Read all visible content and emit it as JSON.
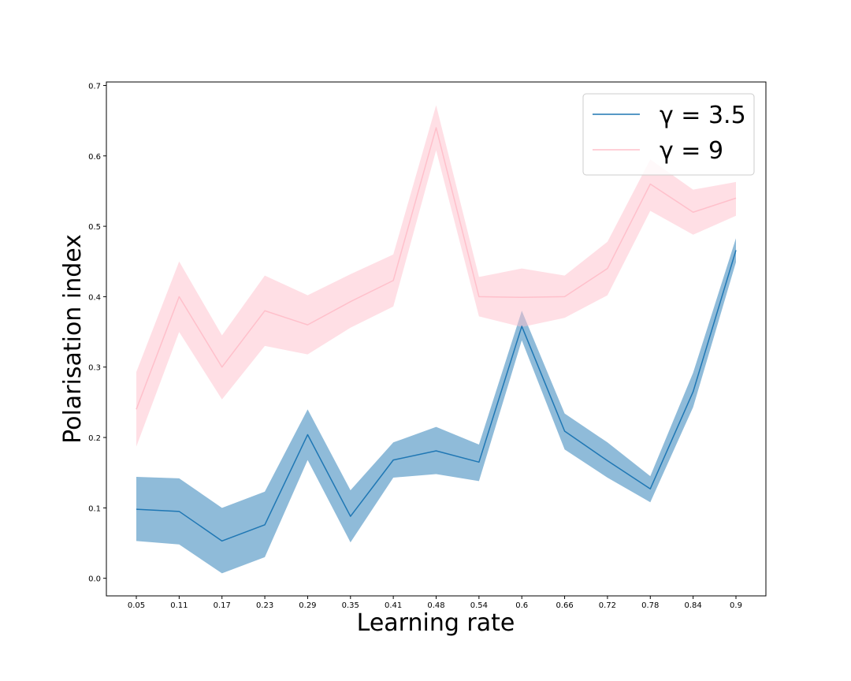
{
  "chart_data": {
    "type": "line",
    "xlabel": "Learning rate",
    "ylabel": "Polarisation index",
    "x": [
      "0.05",
      "0.11",
      "0.17",
      "0.23",
      "0.29",
      "0.35",
      "0.41",
      "0.48",
      "0.54",
      "0.6",
      "0.66",
      "0.72",
      "0.78",
      "0.84",
      "0.9"
    ],
    "yticks": [
      "0.0",
      "0.1",
      "0.2",
      "0.3",
      "0.4",
      "0.5",
      "0.6",
      "0.7"
    ],
    "ylim": [
      -0.025,
      0.705
    ],
    "grid": false,
    "legend_position": "top-right",
    "series": [
      {
        "name": "γ = 3.5",
        "color": "#1f77b4",
        "band_color": "#1f77b4",
        "band_opacity": 0.5,
        "values": [
          0.098,
          0.095,
          0.053,
          0.076,
          0.204,
          0.088,
          0.168,
          0.181,
          0.165,
          0.358,
          0.209,
          0.167,
          0.127,
          0.265,
          0.466
        ],
        "lower": [
          0.053,
          0.048,
          0.007,
          0.03,
          0.168,
          0.051,
          0.143,
          0.148,
          0.138,
          0.338,
          0.183,
          0.143,
          0.108,
          0.243,
          0.449
        ],
        "upper": [
          0.144,
          0.142,
          0.1,
          0.123,
          0.24,
          0.125,
          0.193,
          0.215,
          0.19,
          0.38,
          0.234,
          0.193,
          0.145,
          0.292,
          0.483
        ]
      },
      {
        "name": "γ = 9",
        "color": "#ffc0cb",
        "band_color": "#ffc0cb",
        "band_opacity": 0.5,
        "values": [
          0.24,
          0.4,
          0.3,
          0.38,
          0.36,
          0.393,
          0.423,
          0.64,
          0.4,
          0.399,
          0.4,
          0.44,
          0.56,
          0.52,
          0.54
        ],
        "lower": [
          0.187,
          0.35,
          0.254,
          0.33,
          0.318,
          0.356,
          0.386,
          0.608,
          0.372,
          0.357,
          0.37,
          0.402,
          0.522,
          0.488,
          0.515
        ],
        "upper": [
          0.293,
          0.45,
          0.345,
          0.43,
          0.402,
          0.432,
          0.46,
          0.672,
          0.428,
          0.44,
          0.43,
          0.478,
          0.595,
          0.552,
          0.563
        ]
      }
    ]
  }
}
